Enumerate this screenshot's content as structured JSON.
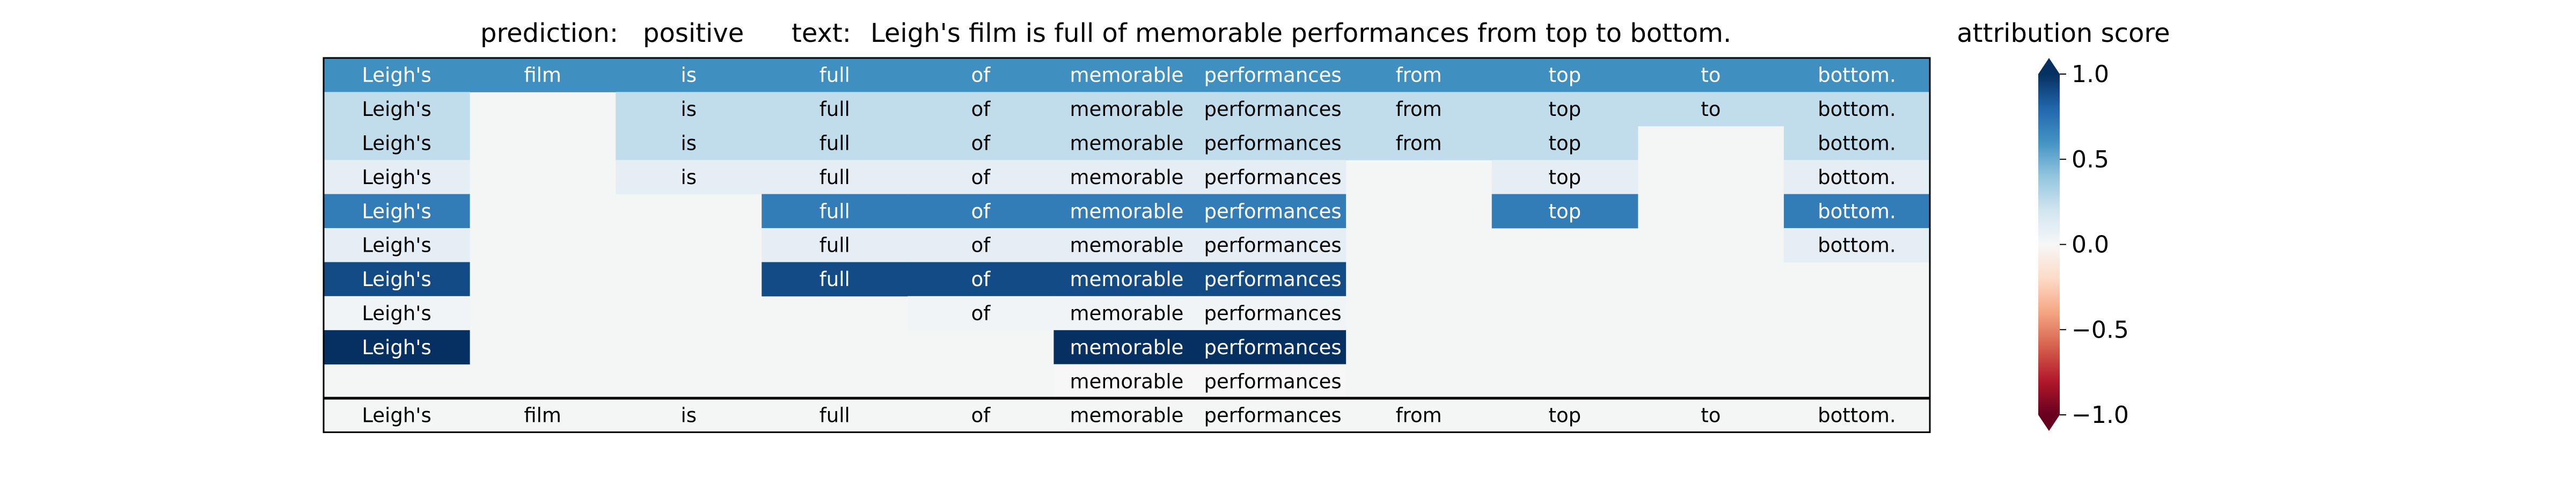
{
  "header": {
    "prediction_label": "prediction:",
    "prediction_value": "positive",
    "text_label": "text:",
    "text_value": "Leigh's film is full of memorable performances from top to bottom."
  },
  "colorbar": {
    "title": "attribution score",
    "ticks": [
      "1.0",
      "0.5",
      "0.0",
      "−0.5",
      "−1.0"
    ],
    "tick_values": [
      1.0,
      0.5,
      0.0,
      -0.5,
      -1.0
    ],
    "colormap": "RdBu",
    "range": [
      -1,
      1
    ]
  },
  "chart_data": {
    "type": "heatmap",
    "title": "attribution score",
    "tokens": [
      "Leigh's",
      "film",
      "is",
      "full",
      "of",
      "memorable",
      "performances",
      "from",
      "top",
      "to",
      "bottom."
    ],
    "rows": [
      [
        0.62,
        0.62,
        0.62,
        0.62,
        0.62,
        0.62,
        0.62,
        0.62,
        0.62,
        0.62,
        0.62
      ],
      [
        0.25,
        null,
        0.25,
        0.25,
        0.25,
        0.25,
        0.25,
        0.25,
        0.25,
        0.25,
        0.25
      ],
      [
        0.25,
        null,
        0.25,
        0.25,
        0.25,
        0.25,
        0.25,
        0.25,
        0.25,
        null,
        0.25
      ],
      [
        0.1,
        null,
        0.1,
        0.1,
        0.1,
        0.1,
        0.1,
        null,
        0.1,
        null,
        0.1
      ],
      [
        0.7,
        null,
        null,
        0.7,
        0.7,
        0.7,
        0.7,
        null,
        0.7,
        null,
        0.7
      ],
      [
        0.1,
        null,
        null,
        0.1,
        0.1,
        0.1,
        0.1,
        null,
        null,
        null,
        0.1
      ],
      [
        0.9,
        null,
        null,
        0.9,
        0.9,
        0.9,
        0.9,
        null,
        null,
        null,
        null
      ],
      [
        0.03,
        null,
        null,
        null,
        0.03,
        0.03,
        0.03,
        null,
        null,
        null,
        null
      ],
      [
        1.0,
        null,
        null,
        null,
        null,
        1.0,
        1.0,
        null,
        null,
        null,
        null
      ],
      [
        null,
        null,
        null,
        null,
        null,
        0.0,
        0.0,
        null,
        null,
        null,
        null
      ]
    ],
    "bottom_row": [
      "Leigh's",
      "film",
      "is",
      "full",
      "of",
      "memorable",
      "performances",
      "from",
      "top",
      "to",
      "bottom."
    ],
    "colorbar_range": [
      -1,
      1
    ],
    "grid": false
  }
}
